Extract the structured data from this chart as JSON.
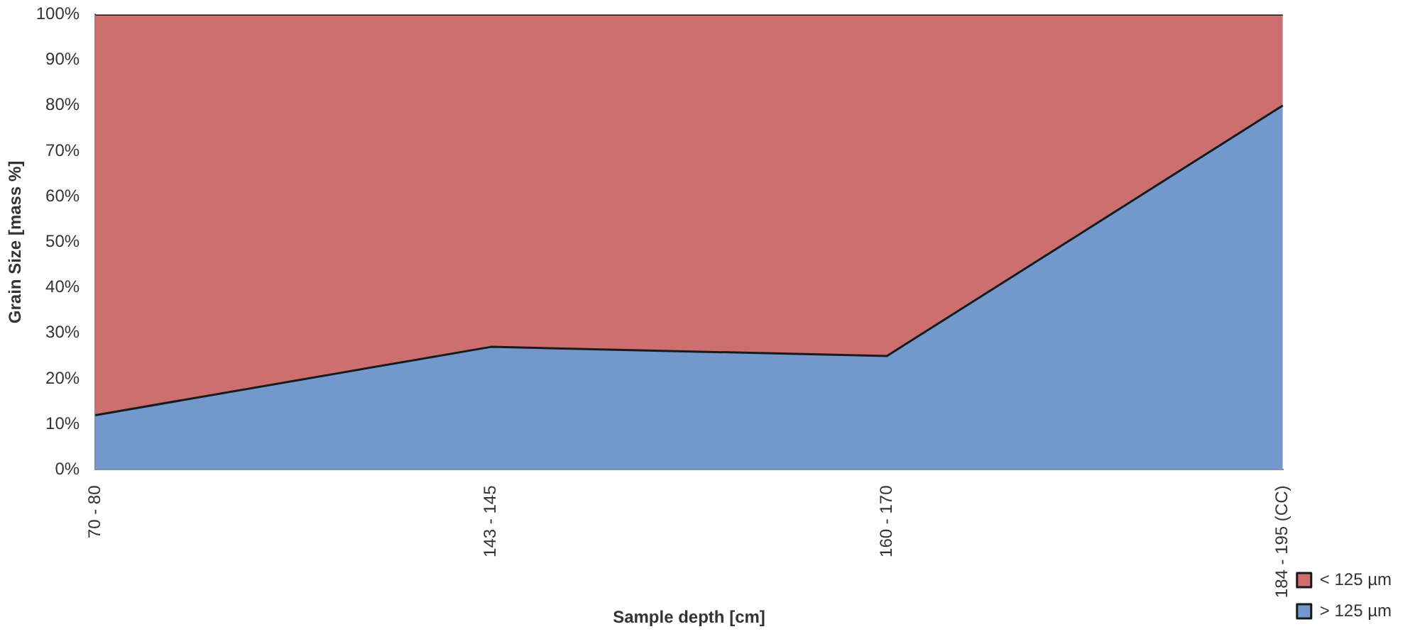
{
  "chart_data": {
    "type": "area",
    "stacked": true,
    "xlabel": "Sample depth [cm]",
    "ylabel": "Grain Size [mass %]",
    "categories": [
      "70 - 80",
      "143 - 145",
      "160 - 170",
      "184 - 195 (CC)"
    ],
    "series": [
      {
        "name": "> 125 µm",
        "color": "#7399cc",
        "values": [
          12,
          27,
          25,
          80
        ]
      },
      {
        "name": "< 125 µm",
        "color": "#cc6f6e",
        "values": [
          88,
          73,
          75,
          20
        ]
      }
    ],
    "ylim": [
      0,
      100
    ],
    "yticks": [
      {
        "value": 0,
        "label": "0%"
      },
      {
        "value": 10,
        "label": "10%"
      },
      {
        "value": 20,
        "label": "20%"
      },
      {
        "value": 30,
        "label": "30%"
      },
      {
        "value": 40,
        "label": "40%"
      },
      {
        "value": 50,
        "label": "50%"
      },
      {
        "value": 60,
        "label": "60%"
      },
      {
        "value": 70,
        "label": "70%"
      },
      {
        "value": 80,
        "label": "80%"
      },
      {
        "value": 90,
        "label": "90%"
      },
      {
        "value": 100,
        "label": "100%"
      }
    ],
    "grid": false,
    "legend": "right"
  }
}
